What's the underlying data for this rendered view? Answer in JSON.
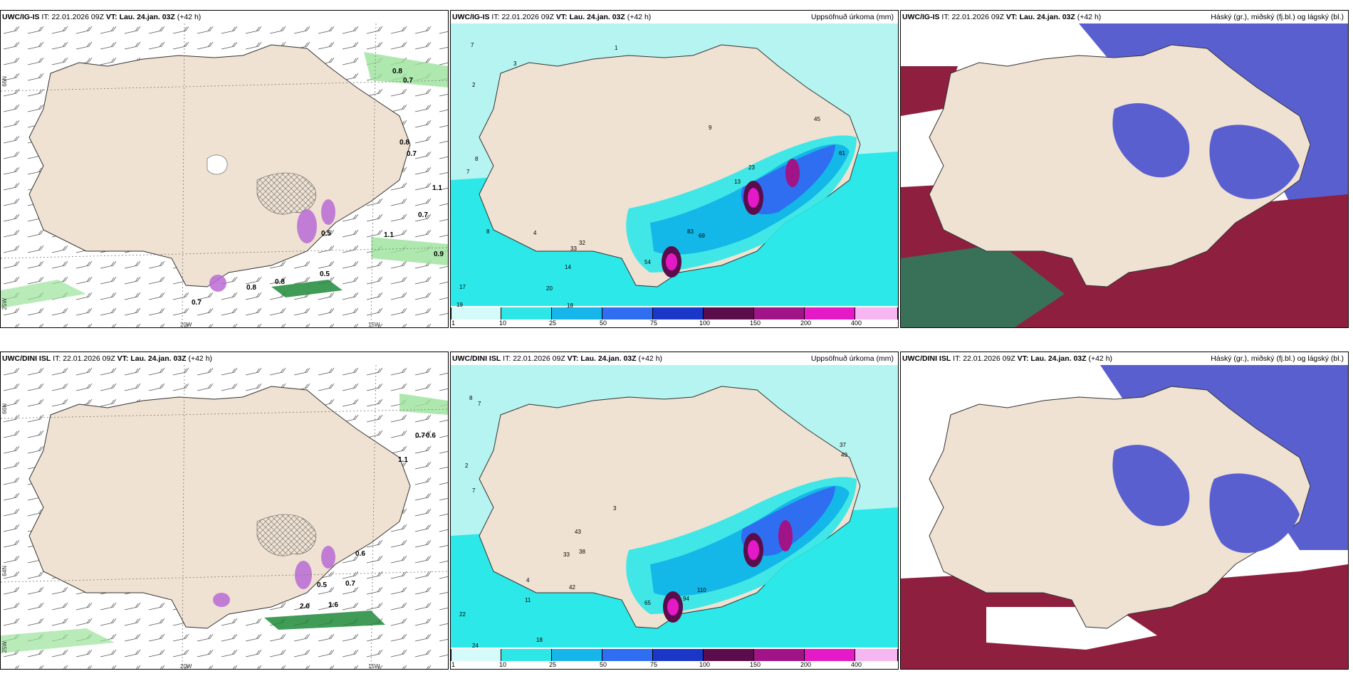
{
  "colors": {
    "land": "#efe2d2",
    "sea_light": "#b6f4f1",
    "precip_cyan": "#2ce8e8",
    "precip_mid": "#13b8e8",
    "precip_blue": "#2f6ef0",
    "precip_magenta": "#c51fa9",
    "cloud_high": "#5a5fd0",
    "cloud_low": "#8e1f3f",
    "cloud_mid": "#2f7a5a",
    "green_precip": "#9be29b",
    "dark_green": "#1e8a3a",
    "purple_blob": "#b86bd6"
  },
  "rows": [
    {
      "model": "UWC/IG-IS",
      "it_label": "IT:",
      "it_value": "22.01.2026 09Z",
      "vt_label": "VT:",
      "vt_value": "Lau. 24.jan. 03Z",
      "lead": "(+42 h)",
      "p1_labels": [
        "0.8",
        "0.7",
        "0.8",
        "0.7",
        "1.1",
        "0.7",
        "1.1",
        "0.9",
        "0.5",
        "0.8",
        "0.8",
        "0.5",
        "0.7"
      ],
      "p2_numbers": [
        "7",
        "2",
        "3",
        "1",
        "7",
        "8",
        "8",
        "17",
        "20",
        "18",
        "19",
        "4",
        "14",
        "32",
        "33",
        "54",
        "83",
        "69",
        "9",
        "23",
        "13",
        "45",
        "61"
      ]
    },
    {
      "model": "UWC/DINI ISL",
      "it_label": "IT:",
      "it_value": "22.01.2026 09Z",
      "vt_label": "VT:",
      "vt_value": "Lau. 24.jan. 03Z",
      "lead": "(+42 h)",
      "p1_labels": [
        "0.7",
        "0.6",
        "1.1",
        "0.6",
        "0.5",
        "0.7",
        "1.6",
        "2.0"
      ],
      "p2_numbers": [
        "8",
        "7",
        "2",
        "3",
        "7",
        "4",
        "11",
        "22",
        "18",
        "24",
        "42",
        "33",
        "38",
        "43",
        "65",
        "110",
        "94",
        "37",
        "49"
      ]
    }
  ],
  "precip_title": "Uppsöfnuð úrkoma (mm)",
  "cloud_title": "Háský (gr.), miðský (fj.bl.) og lágský (bl.)",
  "colorbar_labels": [
    "1",
    "10",
    "25",
    "50",
    "75",
    "100",
    "150",
    "200",
    "400"
  ],
  "colorbar_colors": [
    "#d4fbfa",
    "#2ee6e6",
    "#16b6ea",
    "#2f6ef0",
    "#1a37c8",
    "#5b0c4a",
    "#a01487",
    "#e41ac6",
    "#f6b6f1"
  ],
  "axis_labels": {
    "lon_20w": "20W",
    "lon_15w": "15W",
    "lat_66n": "66N",
    "lat_64n": "64N",
    "lat_25w": "25W"
  }
}
